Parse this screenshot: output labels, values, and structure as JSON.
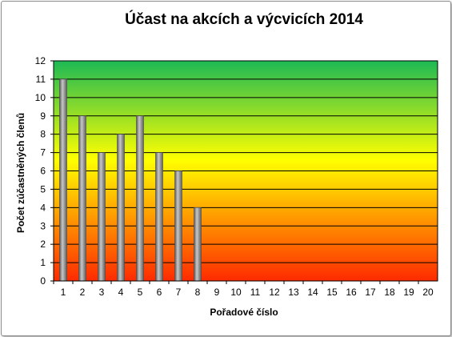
{
  "chart_data": {
    "type": "bar",
    "title": "Účast na akcích a výcvicích 2014",
    "xlabel": "Pořadové číslo",
    "ylabel": "Počet zúčastněných členů",
    "categories": [
      "1",
      "2",
      "3",
      "4",
      "5",
      "6",
      "7",
      "8",
      "9",
      "10",
      "11",
      "12",
      "13",
      "14",
      "15",
      "16",
      "17",
      "18",
      "19",
      "20"
    ],
    "values": [
      11,
      9,
      7,
      8,
      9,
      7,
      6,
      4,
      null,
      null,
      null,
      null,
      null,
      null,
      null,
      null,
      null,
      null,
      null,
      null
    ],
    "ylim": [
      0,
      12
    ],
    "yticks": [
      "0",
      "1",
      "2",
      "3",
      "4",
      "5",
      "6",
      "7",
      "8",
      "9",
      "10",
      "11",
      "12"
    ],
    "grid": true,
    "legend": "none",
    "colors": {
      "bar": "#8c8c8c",
      "background_top": "#1db954",
      "background_mid": "#ffff00",
      "background_bottom": "#ff2a00",
      "gridline": "#000000"
    }
  }
}
